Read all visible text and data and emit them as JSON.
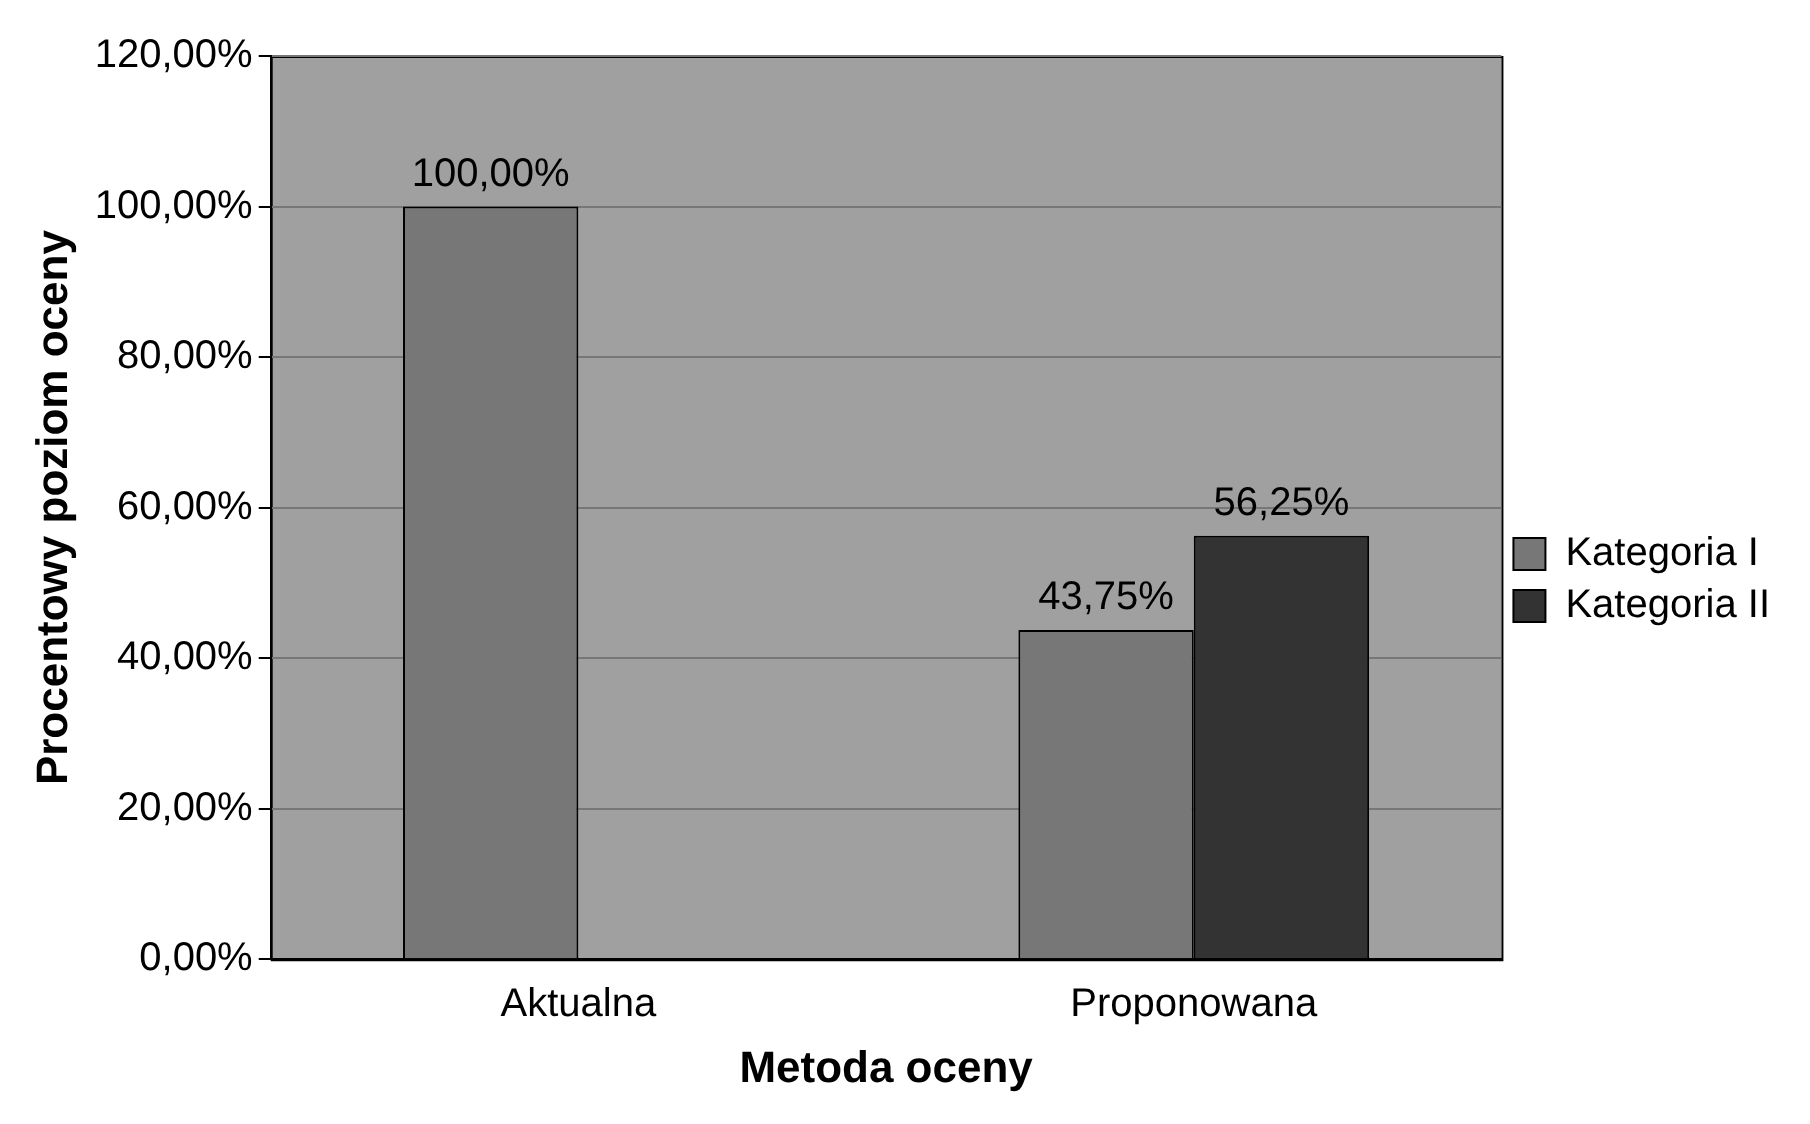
{
  "chart_data": {
    "type": "bar",
    "xlabel": "Metoda oceny",
    "ylabel": "Procentowy poziom oceny",
    "categories": [
      "Aktualna",
      "Proponowana"
    ],
    "series": [
      {
        "name": "Kategoria I",
        "color": "#777777",
        "values": [
          100,
          43.75
        ],
        "value_labels": [
          "100,00%",
          "43,75%"
        ]
      },
      {
        "name": "Kategoria II",
        "color": "#333333",
        "values": [
          null,
          56.25
        ],
        "value_labels": [
          null,
          "56,25%"
        ]
      }
    ],
    "ylim": [
      0,
      120
    ],
    "yticks": [
      {
        "value": 0,
        "label": "0,00%"
      },
      {
        "value": 20,
        "label": "20,00%"
      },
      {
        "value": 40,
        "label": "40,00%"
      },
      {
        "value": 60,
        "label": "60,00%"
      },
      {
        "value": 80,
        "label": "80,00%"
      },
      {
        "value": 100,
        "label": "100,00%"
      },
      {
        "value": 120,
        "label": "120,00%"
      }
    ],
    "grid": "y",
    "legend": "right"
  }
}
